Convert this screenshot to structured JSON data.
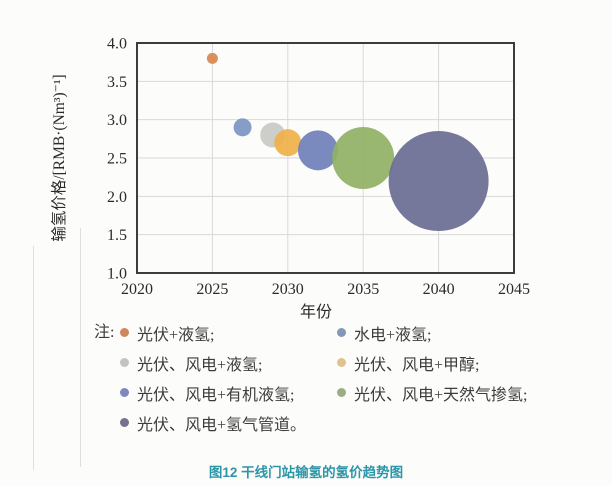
{
  "caption": "图12 干线门站输氢的氢价趋势图",
  "colors": {
    "caption": "#2B96A8",
    "axis_text": "#2B2B2B",
    "grid": "#D9D9D9",
    "plot_border": "#3C3C3C",
    "legend_text": "#3C3C3C",
    "background": "#FCFCFB"
  },
  "chart_data": {
    "type": "scatter",
    "subtype": "bubble",
    "title": "",
    "xlabel": "年份",
    "ylabel": "输氢价格/[RMB·(Nm³)⁻¹]",
    "xlim": [
      2020,
      2045
    ],
    "ylim": [
      1.0,
      4.0
    ],
    "x_ticks": [
      "2020",
      "2025",
      "2030",
      "2035",
      "2040",
      "2045"
    ],
    "y_ticks": [
      "4.0",
      "3.5",
      "3.0",
      "2.5",
      "2.0",
      "1.5",
      "1.0"
    ],
    "grid": true,
    "legend_position": "below",
    "series": [
      {
        "name": "光伏+液氢",
        "x": 2025,
        "y": 3.8,
        "r": 5.5,
        "color": "#D9854E"
      },
      {
        "name": "水电+液氢",
        "x": 2027,
        "y": 2.9,
        "r": 9,
        "color": "#7C95C3"
      },
      {
        "name": "光伏、风电+液氢",
        "x": 2029,
        "y": 2.8,
        "r": 12.5,
        "color": "#C9C9C6"
      },
      {
        "name": "光伏、风电+甲醇",
        "x": 2030,
        "y": 2.7,
        "r": 13.5,
        "color": "#F0B148"
      },
      {
        "name": "光伏、风电+有机液氢",
        "x": 2032,
        "y": 2.6,
        "r": 20,
        "color": "#7080B8"
      },
      {
        "name": "光伏、风电+天然气掺氢",
        "x": 2035,
        "y": 2.5,
        "r": 31,
        "color": "#90B164"
      },
      {
        "name": "光伏、风电+氢气管道",
        "x": 2040,
        "y": 2.2,
        "r": 50,
        "color": "#6A6C93"
      }
    ]
  },
  "legend": {
    "note": "注:",
    "rows": [
      {
        "left": {
          "label": "光伏+液氢;",
          "color": "#D0855A"
        },
        "right": {
          "label": "水电+液氢;",
          "color": "#8298B6"
        }
      },
      {
        "left": {
          "label": "光伏、风电+液氢;",
          "color": "#C3C3C1"
        },
        "right": {
          "label": "光伏、风电+甲醇;",
          "color": "#E2C28C"
        }
      },
      {
        "left": {
          "label": "光伏、风电+有机液氢;",
          "color": "#7D89BC"
        },
        "right": {
          "label": "光伏、风电+天然气掺氢;",
          "color": "#9DAD83"
        }
      },
      {
        "left": {
          "label": "光伏、风电+氢气管道。",
          "color": "#73738F"
        },
        "right": null
      }
    ]
  }
}
